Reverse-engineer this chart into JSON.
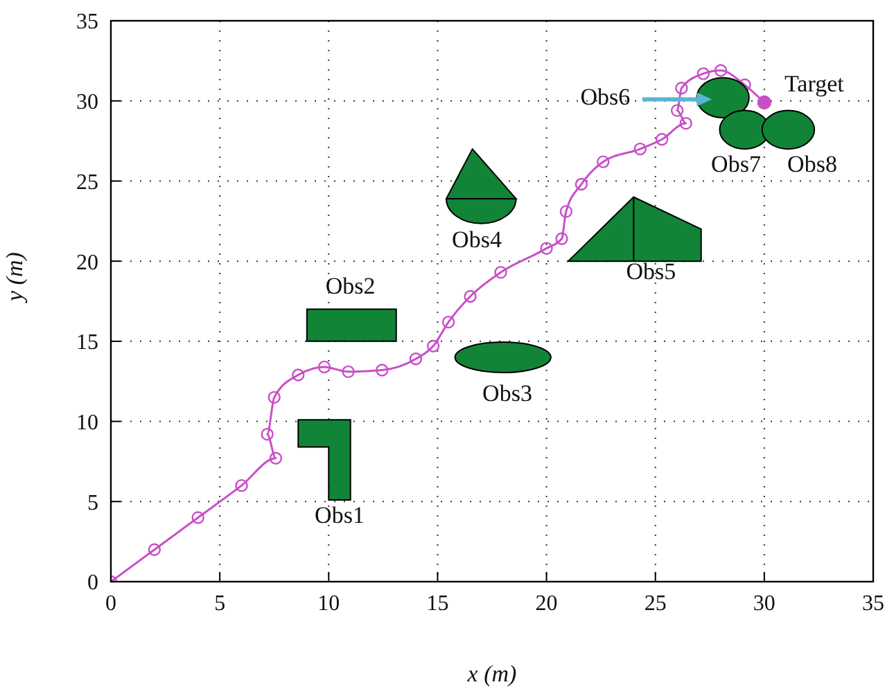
{
  "chart_data": {
    "type": "line",
    "xlabel": "x (m)",
    "ylabel": "y (m)",
    "xlim": [
      0,
      35
    ],
    "ylim": [
      0,
      35
    ],
    "xticks": [
      0,
      5,
      10,
      15,
      20,
      25,
      30,
      35
    ],
    "yticks": [
      0,
      5,
      10,
      15,
      20,
      25,
      30,
      35
    ],
    "grid": true,
    "marker": "circle",
    "line_style": "solid",
    "series": [
      {
        "color": "#c84fc8",
        "x": [
          0,
          2,
          4,
          6,
          7.57,
          7.18,
          7.5,
          8.6,
          9.8,
          10.9,
          12.45,
          14.0,
          14.8,
          15.5,
          16.5,
          17.9,
          20.0,
          20.7,
          20.9,
          21.6,
          22.6,
          24.3,
          25.3,
          26.4,
          26.0,
          26.2,
          27.2,
          28.0,
          29.1,
          30.0
        ],
        "values": [
          0,
          2.0,
          4.0,
          6.0,
          7.7,
          9.2,
          11.5,
          12.9,
          13.4,
          13.1,
          13.2,
          13.9,
          14.7,
          16.2,
          17.8,
          19.3,
          20.8,
          21.4,
          23.1,
          24.8,
          26.2,
          27.0,
          27.6,
          28.6,
          29.4,
          30.8,
          31.7,
          31.9,
          31.0,
          29.9
        ]
      }
    ],
    "annotations": [
      "Obs1",
      "Obs2",
      "Obs3",
      "Obs4",
      "Obs5",
      "Obs6",
      "Obs7",
      "Obs8",
      {
        "text": "Target",
        "x": 30.0,
        "y": 29.9
      }
    ]
  }
}
